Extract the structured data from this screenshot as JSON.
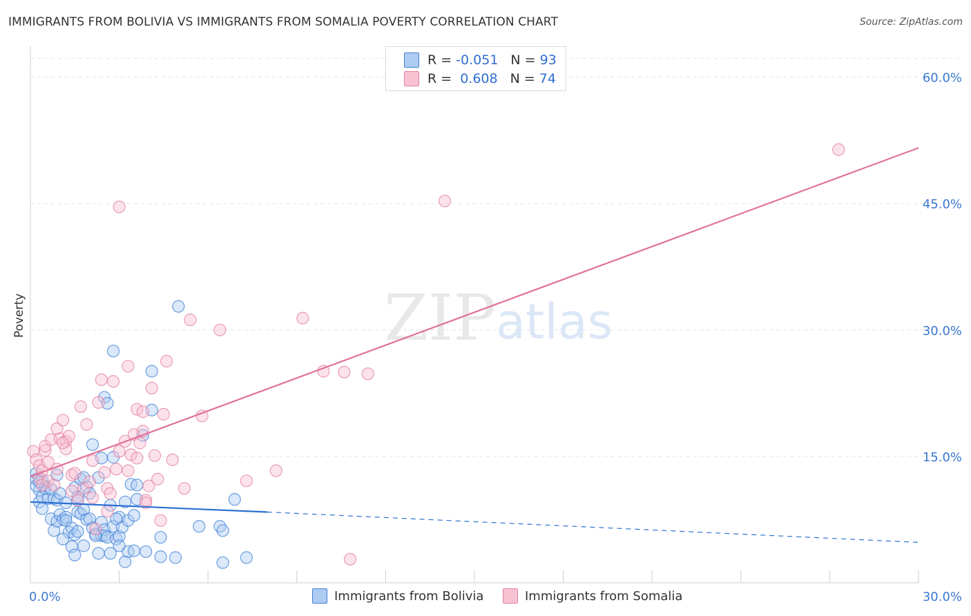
{
  "title": "IMMIGRANTS FROM BOLIVIA VS IMMIGRANTS FROM SOMALIA POVERTY CORRELATION CHART",
  "source": "Source: ZipAtlas.com",
  "watermark": {
    "zip": "ZIP",
    "atlas": "atlas"
  },
  "colors": {
    "bolivia_fill": "#aecbf2",
    "bolivia_stroke": "#3f7fd6",
    "bolivia_line": "#2a6fd1",
    "somalia_fill": "#f8c2d2",
    "somalia_stroke": "#e27fa0",
    "somalia_line": "#e0709a",
    "axis_label": "#3c78d0",
    "grid": "#e3e3e3"
  },
  "legend": {
    "rows": [
      {
        "r_label": "R =",
        "r_value": "-0.051",
        "n_label": "N =",
        "n_value": "93"
      },
      {
        "r_label": "R =",
        "r_value": " 0.608",
        "n_label": "N =",
        "n_value": "74"
      }
    ]
  },
  "bottom_legend": {
    "bolivia": "Immigrants from Bolivia",
    "somalia": "Immigrants from Somalia"
  },
  "chart_data": {
    "type": "scatter",
    "xlabel": "",
    "ylabel": "Poverty",
    "xlim": [
      0,
      30
    ],
    "ylim": [
      0,
      63
    ],
    "x_tick_labels": [
      {
        "value": 0,
        "label": "0.0%"
      },
      {
        "value": 30,
        "label": "30.0%"
      }
    ],
    "x_tick_marks": [
      0,
      3,
      6,
      9,
      12,
      15,
      18,
      21,
      24,
      27,
      30
    ],
    "y_ticks": [
      {
        "value": 15,
        "label": "15.0%"
      },
      {
        "value": 30,
        "label": "30.0%"
      },
      {
        "value": 45,
        "label": "45.0%"
      },
      {
        "value": 60,
        "label": "60.0%"
      }
    ],
    "grid": true,
    "series": [
      {
        "name": "Immigrants from Bolivia",
        "R": -0.051,
        "N": 93,
        "trend": {
          "x1": 0,
          "y1": 9.6,
          "x2": 8,
          "y2": 8.4,
          "dash_to_x": 30,
          "dash_to_y": 4.8
        },
        "points": [
          [
            0.2,
            12.3
          ],
          [
            0.3,
            11.0
          ],
          [
            0.3,
            9.6
          ],
          [
            0.4,
            10.2
          ],
          [
            0.5,
            11.5
          ],
          [
            0.6,
            10.0
          ],
          [
            0.2,
            13.0
          ],
          [
            0.4,
            12.2
          ],
          [
            0.7,
            7.6
          ],
          [
            0.8,
            6.2
          ],
          [
            0.9,
            7.3
          ],
          [
            1.0,
            8.1
          ],
          [
            0.5,
            11.2
          ],
          [
            0.7,
            11.1
          ],
          [
            1.1,
            7.5
          ],
          [
            1.2,
            7.8
          ],
          [
            0.8,
            10.0
          ],
          [
            0.9,
            9.8
          ],
          [
            1.0,
            10.6
          ],
          [
            1.2,
            9.5
          ],
          [
            1.3,
            6.0
          ],
          [
            1.1,
            5.2
          ],
          [
            1.4,
            6.5
          ],
          [
            1.4,
            4.3
          ],
          [
            1.5,
            5.7
          ],
          [
            1.6,
            6.1
          ],
          [
            1.6,
            8.4
          ],
          [
            1.7,
            8.2
          ],
          [
            1.8,
            4.4
          ],
          [
            1.8,
            8.7
          ],
          [
            1.9,
            7.5
          ],
          [
            1.9,
            11.4
          ],
          [
            1.5,
            11.3
          ],
          [
            1.6,
            9.8
          ],
          [
            1.7,
            12.3
          ],
          [
            1.8,
            12.5
          ],
          [
            2.0,
            7.6
          ],
          [
            2.0,
            10.6
          ],
          [
            2.1,
            6.5
          ],
          [
            2.2,
            5.8
          ],
          [
            2.3,
            3.5
          ],
          [
            2.4,
            5.6
          ],
          [
            2.4,
            7.2
          ],
          [
            2.5,
            6.3
          ],
          [
            2.5,
            5.6
          ],
          [
            2.6,
            5.4
          ],
          [
            2.7,
            9.2
          ],
          [
            2.8,
            6.7
          ],
          [
            2.8,
            14.9
          ],
          [
            2.9,
            5.2
          ],
          [
            3.0,
            7.8
          ],
          [
            3.0,
            5.5
          ],
          [
            3.1,
            6.6
          ],
          [
            3.2,
            2.5
          ],
          [
            3.3,
            3.7
          ],
          [
            3.3,
            7.4
          ],
          [
            3.4,
            11.7
          ],
          [
            3.5,
            3.8
          ],
          [
            3.6,
            9.9
          ],
          [
            3.6,
            11.6
          ],
          [
            3.0,
            4.4
          ],
          [
            2.1,
            16.4
          ],
          [
            2.3,
            12.5
          ],
          [
            2.5,
            22.0
          ],
          [
            2.6,
            21.3
          ],
          [
            2.4,
            14.8
          ],
          [
            2.2,
            5.6
          ],
          [
            2.7,
            3.5
          ],
          [
            2.8,
            27.5
          ],
          [
            3.5,
            8.0
          ],
          [
            3.9,
            3.7
          ],
          [
            3.8,
            17.5
          ],
          [
            4.1,
            20.5
          ],
          [
            4.1,
            25.1
          ],
          [
            4.4,
            3.1
          ],
          [
            4.4,
            5.4
          ],
          [
            4.9,
            3.0
          ],
          [
            5.0,
            32.8
          ],
          [
            5.7,
            6.7
          ],
          [
            6.4,
            6.7
          ],
          [
            6.5,
            6.2
          ],
          [
            6.5,
            2.4
          ],
          [
            6.9,
            9.9
          ],
          [
            7.3,
            3.0
          ],
          [
            0.2,
            11.5
          ],
          [
            0.4,
            8.8
          ],
          [
            0.3,
            12.0
          ],
          [
            1.2,
            7.4
          ],
          [
            1.5,
            3.3
          ],
          [
            0.9,
            12.8
          ],
          [
            1.6,
            10.2
          ],
          [
            2.9,
            7.6
          ],
          [
            3.2,
            9.6
          ]
        ]
      },
      {
        "name": "Immigrants from Somalia",
        "R": 0.608,
        "N": 74,
        "trend": {
          "x1": 0,
          "y1": 12.6,
          "x2": 30,
          "y2": 51.6
        },
        "points": [
          [
            0.1,
            15.6
          ],
          [
            0.2,
            14.6
          ],
          [
            0.3,
            13.9
          ],
          [
            0.3,
            12.4
          ],
          [
            0.4,
            13.3
          ],
          [
            0.4,
            11.6
          ],
          [
            0.5,
            15.7
          ],
          [
            0.5,
            16.2
          ],
          [
            0.6,
            12.1
          ],
          [
            0.6,
            14.3
          ],
          [
            0.7,
            17.0
          ],
          [
            0.8,
            11.6
          ],
          [
            0.9,
            13.5
          ],
          [
            0.9,
            18.3
          ],
          [
            1.0,
            17.1
          ],
          [
            1.1,
            19.3
          ],
          [
            1.2,
            16.8
          ],
          [
            1.2,
            15.9
          ],
          [
            1.3,
            17.4
          ],
          [
            1.4,
            10.9
          ],
          [
            1.4,
            12.8
          ],
          [
            1.5,
            13.0
          ],
          [
            1.6,
            9.8
          ],
          [
            1.7,
            20.9
          ],
          [
            1.8,
            11.2
          ],
          [
            1.9,
            18.8
          ],
          [
            2.0,
            12.0
          ],
          [
            2.1,
            14.5
          ],
          [
            2.1,
            10.1
          ],
          [
            2.2,
            6.4
          ],
          [
            2.3,
            21.4
          ],
          [
            2.4,
            24.1
          ],
          [
            2.5,
            13.1
          ],
          [
            2.6,
            11.2
          ],
          [
            2.6,
            8.5
          ],
          [
            2.7,
            10.6
          ],
          [
            2.8,
            23.9
          ],
          [
            2.9,
            13.5
          ],
          [
            3.0,
            15.6
          ],
          [
            3.0,
            44.6
          ],
          [
            3.2,
            16.8
          ],
          [
            3.3,
            25.7
          ],
          [
            3.3,
            13.3
          ],
          [
            3.4,
            15.2
          ],
          [
            3.5,
            17.6
          ],
          [
            3.6,
            14.8
          ],
          [
            3.6,
            20.6
          ],
          [
            3.7,
            16.6
          ],
          [
            3.8,
            20.3
          ],
          [
            3.8,
            18.0
          ],
          [
            3.9,
            9.8
          ],
          [
            4.0,
            11.5
          ],
          [
            4.1,
            23.1
          ],
          [
            4.2,
            15.1
          ],
          [
            4.3,
            12.3
          ],
          [
            4.4,
            7.4
          ],
          [
            4.5,
            20.0
          ],
          [
            4.6,
            26.3
          ],
          [
            4.8,
            14.6
          ],
          [
            5.2,
            11.2
          ],
          [
            5.4,
            31.2
          ],
          [
            5.8,
            19.8
          ],
          [
            6.4,
            30.0
          ],
          [
            7.3,
            12.1
          ],
          [
            8.3,
            13.3
          ],
          [
            9.2,
            31.4
          ],
          [
            9.9,
            25.1
          ],
          [
            10.6,
            25.0
          ],
          [
            10.8,
            2.8
          ],
          [
            11.4,
            24.8
          ],
          [
            14.0,
            45.3
          ],
          [
            27.3,
            51.4
          ],
          [
            3.9,
            9.5
          ],
          [
            1.1,
            16.6
          ]
        ]
      }
    ]
  }
}
